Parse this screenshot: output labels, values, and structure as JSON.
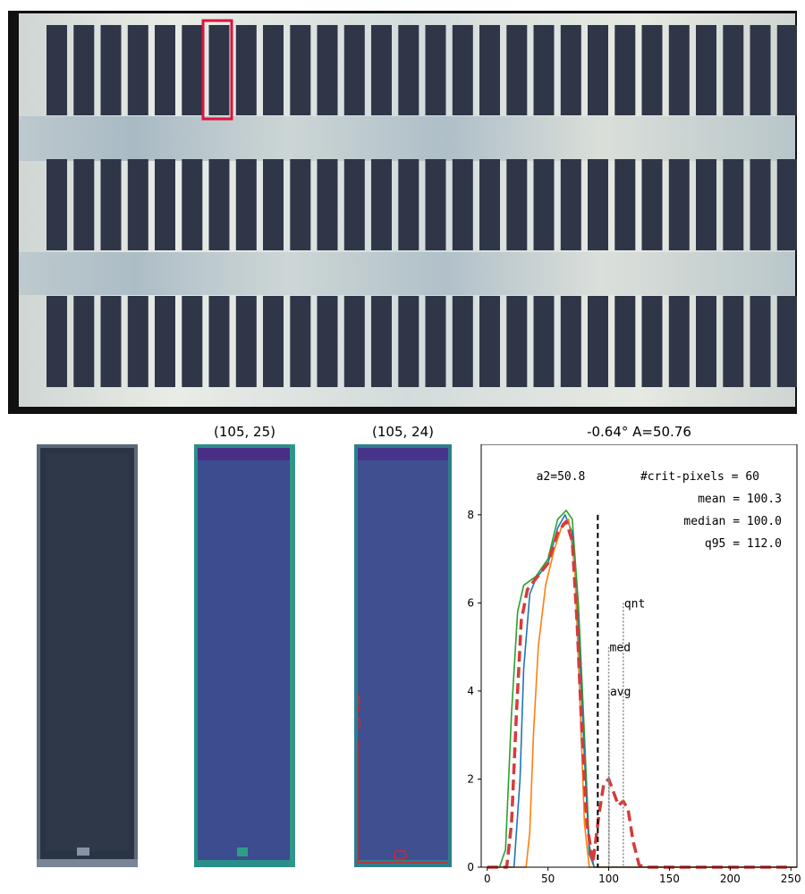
{
  "panel_titles": {
    "tile_b": "(105, 25)",
    "tile_c": "(105, 24)"
  },
  "colors": {
    "frame_dark": "#111111",
    "frame_light": "#dfe3df",
    "cell_dark": "#2f3648",
    "highlight_red": "#dc143c",
    "viridis_bg": "#3c4f8f",
    "viridis_edge": "#2a9a8e",
    "contour_red": "#d62728",
    "series_blue": "#1f77b4",
    "series_orange": "#ff7f0e",
    "series_green": "#2ca02c",
    "series_red": "#d63b3b"
  },
  "chart_data": {
    "type": "line",
    "title": "-0.64° A=50.76",
    "xlim": [
      -5,
      255
    ],
    "ylim": [
      0,
      9.6
    ],
    "xticks": [
      0,
      50,
      100,
      150,
      200,
      250
    ],
    "yticks": [
      0,
      2,
      4,
      6,
      8
    ],
    "annotations": {
      "a2": "a2=50.8",
      "crit": "#crit-pixels = 60",
      "mean": "mean = 100.3",
      "median": "median = 100.0",
      "q95": "q95 = 112.0",
      "qnt": "qnt",
      "med": "med",
      "avg": "avg"
    },
    "threshold_x": 91,
    "marker_lines": [
      {
        "label": "avg",
        "x": 100.3,
        "y_top": 4.0
      },
      {
        "label": "med",
        "x": 100.0,
        "y_top": 5.0
      },
      {
        "label": "qnt",
        "x": 112.0,
        "y_top": 6.0
      }
    ],
    "series": [
      {
        "color": "#2ca02c",
        "dashed": false,
        "points": [
          [
            0,
            0
          ],
          [
            10,
            0
          ],
          [
            15,
            0.4
          ],
          [
            20,
            3.5
          ],
          [
            25,
            5.8
          ],
          [
            30,
            6.4
          ],
          [
            40,
            6.6
          ],
          [
            50,
            7.0
          ],
          [
            58,
            7.9
          ],
          [
            65,
            8.1
          ],
          [
            70,
            7.9
          ],
          [
            75,
            6.0
          ],
          [
            80,
            3.0
          ],
          [
            84,
            0.5
          ],
          [
            88,
            0
          ],
          [
            255,
            0
          ]
        ]
      },
      {
        "color": "#1f77b4",
        "dashed": false,
        "points": [
          [
            0,
            0
          ],
          [
            22,
            0
          ],
          [
            27,
            2.0
          ],
          [
            30,
            4.5
          ],
          [
            35,
            6.2
          ],
          [
            40,
            6.55
          ],
          [
            50,
            6.9
          ],
          [
            58,
            7.7
          ],
          [
            64,
            8.0
          ],
          [
            70,
            7.6
          ],
          [
            75,
            5.5
          ],
          [
            80,
            2.5
          ],
          [
            84,
            0.3
          ],
          [
            88,
            0
          ],
          [
            255,
            0
          ]
        ]
      },
      {
        "color": "#ff7f0e",
        "dashed": false,
        "points": [
          [
            0,
            0
          ],
          [
            32,
            0
          ],
          [
            35,
            0.8
          ],
          [
            38,
            3.0
          ],
          [
            42,
            5.0
          ],
          [
            48,
            6.4
          ],
          [
            55,
            7.2
          ],
          [
            62,
            7.8
          ],
          [
            67,
            7.9
          ],
          [
            72,
            6.8
          ],
          [
            76,
            4.0
          ],
          [
            80,
            1.0
          ],
          [
            84,
            0
          ],
          [
            255,
            0
          ]
        ]
      },
      {
        "color": "#d63b3b",
        "dashed": true,
        "points": [
          [
            0,
            0
          ],
          [
            16,
            0
          ],
          [
            20,
            1.0
          ],
          [
            24,
            3.5
          ],
          [
            28,
            5.6
          ],
          [
            33,
            6.3
          ],
          [
            40,
            6.55
          ],
          [
            50,
            6.9
          ],
          [
            58,
            7.6
          ],
          [
            65,
            7.85
          ],
          [
            70,
            7.4
          ],
          [
            74,
            5.5
          ],
          [
            78,
            3.0
          ],
          [
            82,
            1.0
          ],
          [
            87,
            0.1
          ],
          [
            92,
            1.2
          ],
          [
            96,
            1.9
          ],
          [
            100,
            2.0
          ],
          [
            104,
            1.7
          ],
          [
            108,
            1.4
          ],
          [
            112,
            1.5
          ],
          [
            116,
            1.3
          ],
          [
            120,
            0.6
          ],
          [
            125,
            0.05
          ],
          [
            130,
            0
          ],
          [
            250,
            0
          ]
        ]
      }
    ]
  }
}
